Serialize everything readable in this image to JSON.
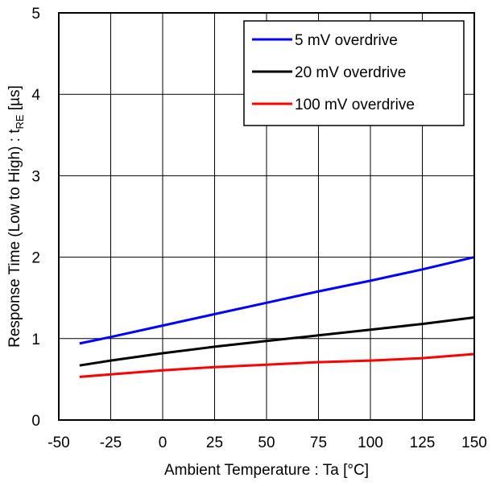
{
  "chart_data": {
    "type": "line",
    "xlabel": "Ambient Temperature : Ta [°C]",
    "ylabel_main": "Response Time (Low to High) : t",
    "ylabel_sub": "RE",
    "ylabel_unit": " [µs]",
    "xlim": [
      -50,
      150
    ],
    "ylim": [
      0,
      5
    ],
    "x_ticks": [
      -50,
      -25,
      0,
      25,
      50,
      75,
      100,
      125,
      150
    ],
    "x_tick_labels": [
      "-50",
      "-25",
      "0",
      "25",
      "50",
      "75",
      "100",
      "125",
      "150"
    ],
    "y_ticks": [
      0,
      1,
      2,
      3,
      4,
      5
    ],
    "y_tick_labels": [
      "0",
      "1",
      "2",
      "3",
      "4",
      "5"
    ],
    "grid": true,
    "legend_position": "top-right",
    "series": [
      {
        "name": "5 mV overdrive",
        "color": "#0000ff",
        "x": [
          -40,
          -25,
          0,
          25,
          50,
          75,
          100,
          125,
          150
        ],
        "y": [
          0.94,
          1.02,
          1.16,
          1.3,
          1.44,
          1.58,
          1.71,
          1.85,
          2.0
        ]
      },
      {
        "name": "20 mV overdrive",
        "color": "#000000",
        "x": [
          -40,
          -25,
          0,
          25,
          50,
          75,
          100,
          125,
          150
        ],
        "y": [
          0.67,
          0.73,
          0.82,
          0.9,
          0.97,
          1.04,
          1.11,
          1.18,
          1.26
        ]
      },
      {
        "name": "100 mV overdrive",
        "color": "#ff0000",
        "x": [
          -40,
          -25,
          0,
          25,
          50,
          75,
          100,
          125,
          150
        ],
        "y": [
          0.53,
          0.56,
          0.61,
          0.65,
          0.68,
          0.71,
          0.73,
          0.76,
          0.81
        ]
      }
    ]
  }
}
